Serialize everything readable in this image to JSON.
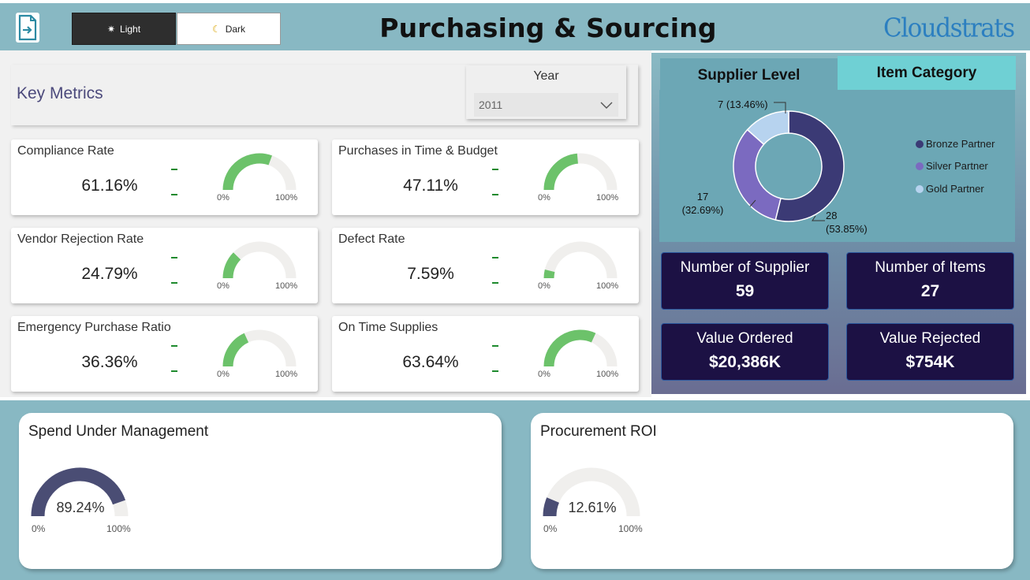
{
  "header": {
    "title": "Purchasing & Sourcing",
    "logo_text": "Cloudstrats",
    "export_icon": "export-page-icon",
    "theme_light_label": "Light",
    "theme_dark_label": "Dark",
    "theme_light_icon": "sun-icon",
    "theme_dark_icon": "moon-icon"
  },
  "key_metrics": {
    "title": "Key Metrics",
    "year_slicer": {
      "label": "Year",
      "selected": "2011"
    }
  },
  "kpis": [
    {
      "title": "Compliance Rate",
      "value": "61.16%",
      "fraction": 0.6116,
      "min_label": "0%",
      "max_label": "100%",
      "trend": "-"
    },
    {
      "title": "Purchases in Time & Budget",
      "value": "47.11%",
      "fraction": 0.4711,
      "min_label": "0%",
      "max_label": "100%",
      "trend": "-"
    },
    {
      "title": "Vendor Rejection Rate",
      "value": "24.79%",
      "fraction": 0.2479,
      "min_label": "0%",
      "max_label": "100%",
      "trend": "-"
    },
    {
      "title": "Defect Rate",
      "value": "7.59%",
      "fraction": 0.0759,
      "min_label": "0%",
      "max_label": "100%",
      "trend": "-"
    },
    {
      "title": "Emergency Purchase Ratio",
      "value": "36.36%",
      "fraction": 0.3636,
      "min_label": "0%",
      "max_label": "100%",
      "trend": "-"
    },
    {
      "title": "On Time Supplies",
      "value": "63.64%",
      "fraction": 0.6364,
      "min_label": "0%",
      "max_label": "100%",
      "trend": "-"
    }
  ],
  "supplier_panel": {
    "tabs": [
      "Supplier Level",
      "Item Category"
    ],
    "active_tab": "Supplier Level",
    "legend": [
      {
        "label": "Bronze Partner",
        "color": "#3b3a75"
      },
      {
        "label": "Silver Partner",
        "color": "#7b6ac0"
      },
      {
        "label": "Gold Partner",
        "color": "#b7d3ef"
      }
    ],
    "slice_labels": {
      "bronze": [
        "28",
        "(53.85%)"
      ],
      "silver": [
        "17",
        "(32.69%)"
      ],
      "gold": "7 (13.46%)"
    }
  },
  "chart_data": {
    "type": "pie",
    "title": "",
    "categories": [
      "Bronze Partner",
      "Silver Partner",
      "Gold Partner"
    ],
    "values": [
      28,
      17,
      7
    ],
    "percents": [
      53.85,
      32.69,
      13.46
    ],
    "colors": [
      "#3b3a75",
      "#7b6ac0",
      "#b7d3ef"
    ],
    "legend": "right"
  },
  "stats": [
    {
      "label": "Number of Supplier",
      "value": "59"
    },
    {
      "label": "Number of Items",
      "value": "27"
    },
    {
      "label": "Value Ordered",
      "value": "$20,386K"
    },
    {
      "label": "Value Rejected",
      "value": "$754K"
    }
  ],
  "bottom": [
    {
      "title": "Spend Under Management",
      "value": "89.24%",
      "fraction": 0.8924,
      "min_label": "0%",
      "max_label": "100%"
    },
    {
      "title": "Procurement ROI",
      "value": "12.61%",
      "fraction": 0.1261,
      "min_label": "0%",
      "max_label": "100%"
    }
  ],
  "colors": {
    "header_bg": "#88b8c3",
    "gauge_fill": "#6cc26a",
    "gauge_track": "#f0efed",
    "big_gauge_fill": "#4a4d74",
    "stat_card_bg": "#1c1144",
    "accent_text": "#4c4a7c"
  }
}
